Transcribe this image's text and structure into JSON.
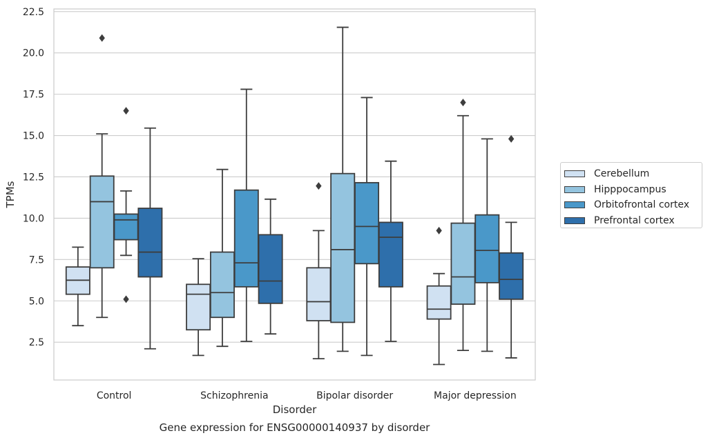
{
  "chart_data": {
    "type": "box",
    "title": "Gene expression for ENSG00000140937 by disorder",
    "xlabel": "Disorder",
    "ylabel": "TPMs",
    "ylim": [
      0,
      22.5
    ],
    "y_ticks": [
      "2.5",
      "5.0",
      "7.5",
      "10.0",
      "12.5",
      "15.0",
      "17.5",
      "20.0",
      "22.5"
    ],
    "grid": "horizontal",
    "legend_position": "right",
    "categories": [
      "Control",
      "Schizophrenia",
      "Bipolar disorder",
      "Major depression"
    ],
    "series": [
      {
        "name": "Cerebellum",
        "color": "#d0e1f2",
        "boxes": [
          {
            "whislo": 3.5,
            "q1": 5.4,
            "med": 6.25,
            "q3": 7.05,
            "whishi": 8.25,
            "fliers": []
          },
          {
            "whislo": 1.7,
            "q1": 3.25,
            "med": 5.4,
            "q3": 6.0,
            "whishi": 7.55,
            "fliers": []
          },
          {
            "whislo": 1.5,
            "q1": 3.8,
            "med": 4.95,
            "q3": 7.0,
            "whishi": 9.25,
            "fliers": [
              11.95
            ]
          },
          {
            "whislo": 1.15,
            "q1": 3.9,
            "med": 4.5,
            "q3": 5.9,
            "whishi": 6.65,
            "fliers": [
              9.25
            ]
          }
        ]
      },
      {
        "name": "Hipppocampus",
        "color": "#94c4df",
        "boxes": [
          {
            "whislo": 4.0,
            "q1": 7.0,
            "med": 11.0,
            "q3": 12.55,
            "whishi": 15.1,
            "fliers": [
              20.9
            ]
          },
          {
            "whislo": 2.25,
            "q1": 4.0,
            "med": 5.5,
            "q3": 7.95,
            "whishi": 12.95,
            "fliers": []
          },
          {
            "whislo": 1.95,
            "q1": 3.7,
            "med": 8.1,
            "q3": 12.7,
            "whishi": 21.55,
            "fliers": []
          },
          {
            "whislo": 2.0,
            "q1": 4.8,
            "med": 6.45,
            "q3": 9.7,
            "whishi": 16.2,
            "fliers": [
              17.0
            ]
          }
        ]
      },
      {
        "name": "Orbitofrontal cortex",
        "color": "#4a98c9",
        "boxes": [
          {
            "whislo": 7.75,
            "q1": 8.7,
            "med": 9.9,
            "q3": 10.25,
            "whishi": 11.65,
            "fliers": [
              16.5,
              5.1
            ]
          },
          {
            "whislo": 2.55,
            "q1": 5.85,
            "med": 7.3,
            "q3": 11.7,
            "whishi": 17.8,
            "fliers": []
          },
          {
            "whislo": 1.7,
            "q1": 7.25,
            "med": 9.5,
            "q3": 12.15,
            "whishi": 17.3,
            "fliers": []
          },
          {
            "whislo": 1.95,
            "q1": 6.1,
            "med": 8.05,
            "q3": 10.2,
            "whishi": 14.8,
            "fliers": []
          }
        ]
      },
      {
        "name": "Prefrontal cortex",
        "color": "#2e6fab",
        "boxes": [
          {
            "whislo": 2.1,
            "q1": 6.45,
            "med": 7.95,
            "q3": 10.6,
            "whishi": 15.45,
            "fliers": []
          },
          {
            "whislo": 3.0,
            "q1": 4.85,
            "med": 6.2,
            "q3": 9.0,
            "whishi": 11.15,
            "fliers": []
          },
          {
            "whislo": 2.55,
            "q1": 5.85,
            "med": 8.85,
            "q3": 9.75,
            "whishi": 13.45,
            "fliers": []
          },
          {
            "whislo": 1.55,
            "q1": 5.1,
            "med": 6.3,
            "q3": 7.9,
            "whishi": 9.75,
            "fliers": [
              14.8
            ]
          }
        ]
      }
    ]
  }
}
